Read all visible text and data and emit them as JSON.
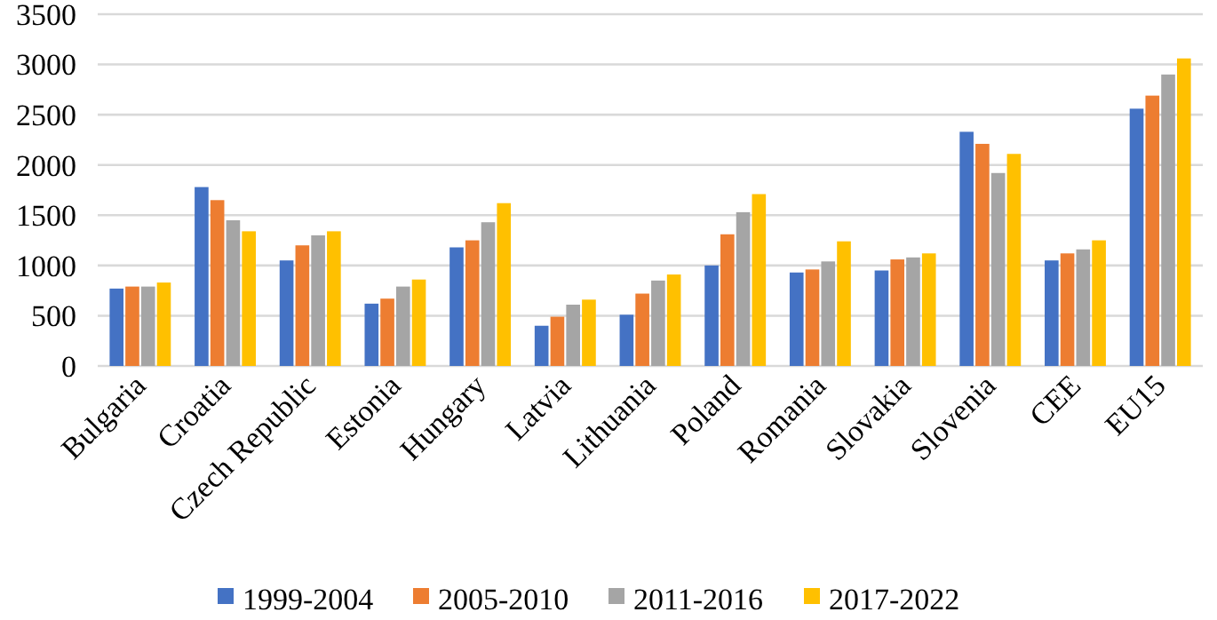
{
  "chart_data": {
    "type": "bar",
    "categories": [
      "Bulgaria",
      "Croatia",
      "Czech Republic",
      "Estonia",
      "Hungary",
      "Latvia",
      "Lithuania",
      "Poland",
      "Romania",
      "Slovakia",
      "Slovenia",
      "CEE",
      "EU15"
    ],
    "series": [
      {
        "name": "1999-2004",
        "color": "#4472c4",
        "values": [
          770,
          1780,
          1050,
          620,
          1180,
          400,
          510,
          1000,
          930,
          950,
          2330,
          1050,
          2560
        ]
      },
      {
        "name": "2005-2010",
        "color": "#ed7d31",
        "values": [
          790,
          1650,
          1200,
          670,
          1250,
          490,
          720,
          1310,
          960,
          1060,
          2210,
          1120,
          2690
        ]
      },
      {
        "name": "2011-2016",
        "color": "#a5a5a5",
        "values": [
          790,
          1450,
          1300,
          790,
          1430,
          610,
          850,
          1530,
          1040,
          1080,
          1920,
          1160,
          2900
        ]
      },
      {
        "name": "2017-2022",
        "color": "#ffc000",
        "values": [
          830,
          1340,
          1340,
          860,
          1620,
          660,
          910,
          1710,
          1240,
          1120,
          2110,
          1250,
          3060
        ]
      }
    ],
    "ylim": [
      0,
      3500
    ],
    "yticks": [
      0,
      500,
      1000,
      1500,
      2000,
      2500,
      3000,
      3500
    ],
    "grid": "y",
    "legend": "bottom"
  }
}
